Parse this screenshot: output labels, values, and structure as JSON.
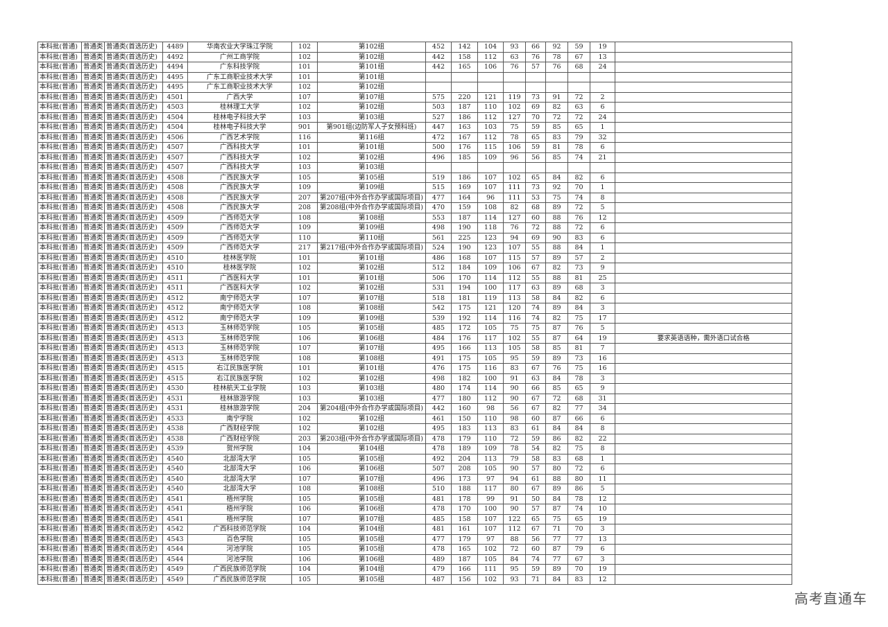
{
  "watermark": "高考直通车",
  "table": {
    "prefix": [
      "本科批(普通)",
      "普通类",
      "普通类(首选历史)"
    ],
    "rows": [
      [
        "4489",
        "华南农业大学珠江学院",
        "102",
        "第102组",
        "452",
        "142",
        "104",
        "93",
        "66",
        "92",
        "59",
        "19",
        ""
      ],
      [
        "4492",
        "广州工商学院",
        "102",
        "第102组",
        "442",
        "158",
        "112",
        "63",
        "76",
        "78",
        "67",
        "13",
        ""
      ],
      [
        "4494",
        "广东科技学院",
        "101",
        "第101组",
        "442",
        "165",
        "106",
        "76",
        "57",
        "76",
        "68",
        "24",
        ""
      ],
      [
        "4495",
        "广东工商职业技术大学",
        "101",
        "第101组",
        "",
        "",
        "",
        "",
        "",
        "",
        "",
        "",
        ""
      ],
      [
        "4495",
        "广东工商职业技术大学",
        "102",
        "第102组",
        "",
        "",
        "",
        "",
        "",
        "",
        "",
        "",
        ""
      ],
      [
        "4501",
        "广西大学",
        "107",
        "第107组",
        "575",
        "220",
        "121",
        "119",
        "73",
        "91",
        "72",
        "2",
        ""
      ],
      [
        "4503",
        "桂林理工大学",
        "102",
        "第102组",
        "503",
        "187",
        "110",
        "102",
        "69",
        "82",
        "63",
        "6",
        ""
      ],
      [
        "4504",
        "桂林电子科技大学",
        "103",
        "第103组",
        "527",
        "186",
        "112",
        "127",
        "70",
        "72",
        "72",
        "24",
        ""
      ],
      [
        "4504",
        "桂林电子科技大学",
        "901",
        "第901组(边防军人子女预科班)",
        "447",
        "163",
        "103",
        "75",
        "59",
        "85",
        "65",
        "1",
        ""
      ],
      [
        "4506",
        "广西艺术学院",
        "116",
        "第116组",
        "472",
        "167",
        "112",
        "78",
        "65",
        "83",
        "79",
        "32",
        ""
      ],
      [
        "4507",
        "广西科技大学",
        "101",
        "第101组",
        "500",
        "176",
        "115",
        "106",
        "59",
        "81",
        "78",
        "6",
        ""
      ],
      [
        "4507",
        "广西科技大学",
        "102",
        "第102组",
        "496",
        "185",
        "109",
        "96",
        "56",
        "85",
        "74",
        "21",
        ""
      ],
      [
        "4507",
        "广西科技大学",
        "103",
        "第103组",
        "",
        "",
        "",
        "",
        "",
        "",
        "",
        "",
        ""
      ],
      [
        "4508",
        "广西民族大学",
        "105",
        "第105组",
        "519",
        "186",
        "107",
        "102",
        "65",
        "84",
        "82",
        "6",
        ""
      ],
      [
        "4508",
        "广西民族大学",
        "109",
        "第109组",
        "515",
        "169",
        "107",
        "111",
        "73",
        "92",
        "70",
        "1",
        ""
      ],
      [
        "4508",
        "广西民族大学",
        "207",
        "第207组(中外合作办学或国际项目)",
        "477",
        "164",
        "96",
        "111",
        "53",
        "75",
        "74",
        "8",
        ""
      ],
      [
        "4508",
        "广西民族大学",
        "208",
        "第208组(中外合作办学或国际项目)",
        "470",
        "159",
        "108",
        "82",
        "68",
        "89",
        "72",
        "5",
        ""
      ],
      [
        "4509",
        "广西师范大学",
        "108",
        "第108组",
        "553",
        "187",
        "114",
        "127",
        "60",
        "88",
        "76",
        "12",
        ""
      ],
      [
        "4509",
        "广西师范大学",
        "109",
        "第109组",
        "498",
        "190",
        "118",
        "76",
        "72",
        "88",
        "72",
        "6",
        ""
      ],
      [
        "4509",
        "广西师范大学",
        "110",
        "第110组",
        "561",
        "225",
        "123",
        "94",
        "69",
        "90",
        "83",
        "6",
        ""
      ],
      [
        "4509",
        "广西师范大学",
        "217",
        "第217组(中外合作办学或国际项目)",
        "524",
        "190",
        "123",
        "107",
        "55",
        "88",
        "84",
        "1",
        ""
      ],
      [
        "4510",
        "桂林医学院",
        "101",
        "第101组",
        "486",
        "168",
        "107",
        "115",
        "57",
        "89",
        "57",
        "2",
        ""
      ],
      [
        "4510",
        "桂林医学院",
        "102",
        "第102组",
        "512",
        "184",
        "109",
        "106",
        "67",
        "82",
        "73",
        "9",
        ""
      ],
      [
        "4511",
        "广西医科大学",
        "101",
        "第101组",
        "506",
        "170",
        "114",
        "112",
        "55",
        "88",
        "81",
        "25",
        ""
      ],
      [
        "4511",
        "广西医科大学",
        "102",
        "第102组",
        "531",
        "194",
        "100",
        "117",
        "63",
        "89",
        "68",
        "3",
        ""
      ],
      [
        "4512",
        "南宁师范大学",
        "107",
        "第107组",
        "518",
        "181",
        "119",
        "113",
        "58",
        "84",
        "82",
        "6",
        ""
      ],
      [
        "4512",
        "南宁师范大学",
        "108",
        "第108组",
        "542",
        "175",
        "121",
        "120",
        "74",
        "89",
        "84",
        "3",
        ""
      ],
      [
        "4512",
        "南宁师范大学",
        "109",
        "第109组",
        "539",
        "192",
        "114",
        "116",
        "74",
        "82",
        "75",
        "17",
        ""
      ],
      [
        "4513",
        "玉林师范学院",
        "105",
        "第105组",
        "485",
        "172",
        "105",
        "75",
        "75",
        "87",
        "76",
        "5",
        ""
      ],
      [
        "4513",
        "玉林师范学院",
        "106",
        "第106组",
        "484",
        "176",
        "117",
        "102",
        "55",
        "87",
        "64",
        "19",
        "要求英语语种，需外语口试合格"
      ],
      [
        "4513",
        "玉林师范学院",
        "107",
        "第107组",
        "495",
        "166",
        "113",
        "105",
        "58",
        "85",
        "81",
        "7",
        ""
      ],
      [
        "4513",
        "玉林师范学院",
        "108",
        "第108组",
        "491",
        "175",
        "105",
        "95",
        "59",
        "89",
        "73",
        "16",
        ""
      ],
      [
        "4515",
        "右江民族医学院",
        "101",
        "第101组",
        "476",
        "175",
        "116",
        "83",
        "67",
        "76",
        "75",
        "16",
        ""
      ],
      [
        "4515",
        "右江民族医学院",
        "102",
        "第102组",
        "498",
        "182",
        "100",
        "91",
        "63",
        "84",
        "78",
        "3",
        ""
      ],
      [
        "4530",
        "桂林航天工业学院",
        "103",
        "第103组",
        "480",
        "174",
        "114",
        "90",
        "66",
        "85",
        "65",
        "9",
        ""
      ],
      [
        "4531",
        "桂林旅游学院",
        "103",
        "第103组",
        "477",
        "180",
        "112",
        "90",
        "67",
        "72",
        "68",
        "31",
        ""
      ],
      [
        "4531",
        "桂林旅游学院",
        "204",
        "第204组(中外合作办学或国际项目)",
        "442",
        "160",
        "98",
        "56",
        "67",
        "82",
        "77",
        "34",
        ""
      ],
      [
        "4533",
        "南宁学院",
        "102",
        "第102组",
        "461",
        "150",
        "110",
        "98",
        "60",
        "87",
        "66",
        "6",
        ""
      ],
      [
        "4538",
        "广西财经学院",
        "102",
        "第102组",
        "495",
        "183",
        "113",
        "83",
        "61",
        "84",
        "84",
        "8",
        ""
      ],
      [
        "4538",
        "广西财经学院",
        "203",
        "第203组(中外合作办学或国际项目)",
        "478",
        "179",
        "110",
        "72",
        "59",
        "86",
        "82",
        "22",
        ""
      ],
      [
        "4539",
        "贺州学院",
        "104",
        "第104组",
        "478",
        "189",
        "109",
        "78",
        "54",
        "82",
        "75",
        "8",
        ""
      ],
      [
        "4540",
        "北部湾大学",
        "105",
        "第105组",
        "492",
        "204",
        "113",
        "79",
        "58",
        "83",
        "68",
        "1",
        ""
      ],
      [
        "4540",
        "北部湾大学",
        "106",
        "第106组",
        "507",
        "208",
        "105",
        "90",
        "57",
        "80",
        "72",
        "6",
        ""
      ],
      [
        "4540",
        "北部湾大学",
        "107",
        "第107组",
        "496",
        "173",
        "97",
        "94",
        "61",
        "88",
        "80",
        "11",
        ""
      ],
      [
        "4540",
        "北部湾大学",
        "108",
        "第108组",
        "510",
        "188",
        "117",
        "80",
        "67",
        "89",
        "86",
        "5",
        ""
      ],
      [
        "4541",
        "梧州学院",
        "105",
        "第105组",
        "481",
        "178",
        "99",
        "91",
        "50",
        "84",
        "78",
        "12",
        ""
      ],
      [
        "4541",
        "梧州学院",
        "106",
        "第106组",
        "478",
        "170",
        "100",
        "90",
        "57",
        "87",
        "74",
        "10",
        ""
      ],
      [
        "4541",
        "梧州学院",
        "107",
        "第107组",
        "485",
        "158",
        "107",
        "122",
        "65",
        "75",
        "65",
        "19",
        ""
      ],
      [
        "4542",
        "广西科技师范学院",
        "104",
        "第104组",
        "481",
        "161",
        "107",
        "112",
        "67",
        "71",
        "70",
        "3",
        ""
      ],
      [
        "4543",
        "百色学院",
        "105",
        "第105组",
        "477",
        "179",
        "97",
        "88",
        "56",
        "77",
        "77",
        "13",
        ""
      ],
      [
        "4544",
        "河池学院",
        "105",
        "第105组",
        "478",
        "165",
        "102",
        "72",
        "60",
        "87",
        "79",
        "6",
        ""
      ],
      [
        "4544",
        "河池学院",
        "106",
        "第106组",
        "489",
        "187",
        "105",
        "84",
        "74",
        "77",
        "67",
        "3",
        ""
      ],
      [
        "4549",
        "广西民族师范学院",
        "104",
        "第104组",
        "479",
        "166",
        "111",
        "95",
        "59",
        "89",
        "70",
        "19",
        ""
      ],
      [
        "4549",
        "广西民族师范学院",
        "105",
        "第105组",
        "487",
        "156",
        "102",
        "93",
        "71",
        "84",
        "83",
        "12",
        ""
      ]
    ]
  }
}
